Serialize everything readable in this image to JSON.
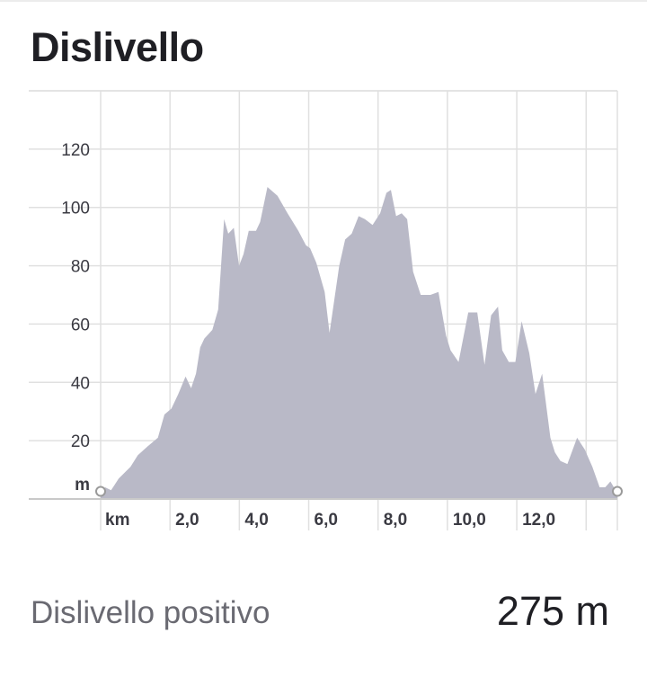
{
  "title": "Dislivello",
  "stat": {
    "label": "Dislivello positivo",
    "value": "275 m"
  },
  "chart_data": {
    "type": "area",
    "xlabel": "km",
    "ylabel": "m",
    "xlim": [
      0,
      14.9
    ],
    "ylim": [
      0,
      140
    ],
    "x_ticks": [
      2,
      4,
      6,
      8,
      10,
      12
    ],
    "x_tick_labels": [
      "2,0",
      "4,0",
      "6,0",
      "8,0",
      "10,0",
      "12,0"
    ],
    "x_grid": [
      2,
      4,
      6,
      8,
      10,
      12,
      14
    ],
    "y_ticks": [
      20,
      40,
      60,
      80,
      100,
      120
    ],
    "y_tick_labels": [
      "20",
      "40",
      "60",
      "80",
      "100",
      "120"
    ],
    "y_grid": [
      20,
      40,
      60,
      80,
      100,
      120,
      140
    ],
    "grid": true,
    "colors": {
      "fill": "#b9b9c7",
      "grid": "#e0e0e0",
      "axis": "#c9c9c9",
      "endpoint": "#9a9a9a"
    },
    "series": [
      {
        "x": [
          0,
          0.13,
          0.3,
          0.52,
          0.86,
          1.07,
          1.35,
          1.65,
          1.84,
          2.04,
          2.24,
          2.45,
          2.61,
          2.75,
          2.87,
          2.99,
          3.22,
          3.39,
          3.56,
          3.68,
          3.84,
          3.99,
          4.12,
          4.27,
          4.48,
          4.6,
          4.81,
          5.1,
          5.39,
          5.7,
          5.92,
          6.04,
          6.22,
          6.46,
          6.6,
          6.88,
          7.05,
          7.24,
          7.44,
          7.62,
          7.84,
          8.06,
          8.24,
          8.37,
          8.52,
          8.68,
          8.84,
          9.01,
          9.23,
          9.51,
          9.74,
          9.96,
          10.09,
          10.32,
          10.6,
          10.86,
          11.07,
          11.26,
          11.46,
          11.58,
          11.77,
          11.96,
          12.14,
          12.36,
          12.54,
          12.73,
          12.97,
          13.1,
          13.26,
          13.46,
          13.74,
          13.96,
          14.18,
          14.39,
          14.55,
          14.7,
          14.9
        ],
        "values": [
          2,
          4,
          3,
          7,
          11,
          15,
          18,
          21,
          29,
          31,
          36,
          42,
          38,
          43,
          52,
          55,
          58,
          65,
          96,
          91,
          93,
          80,
          84,
          92,
          92,
          95,
          107,
          104,
          98,
          92,
          87,
          86,
          81,
          71,
          57,
          80,
          89,
          91,
          97,
          96,
          94,
          98,
          105,
          106,
          97,
          98,
          96,
          78,
          70,
          70,
          71,
          56,
          51,
          47,
          64,
          64,
          46,
          63,
          66,
          51,
          47,
          47,
          61,
          50,
          36,
          43,
          21,
          16,
          13,
          12,
          21,
          17,
          11,
          4,
          4,
          6,
          2
        ]
      }
    ]
  }
}
